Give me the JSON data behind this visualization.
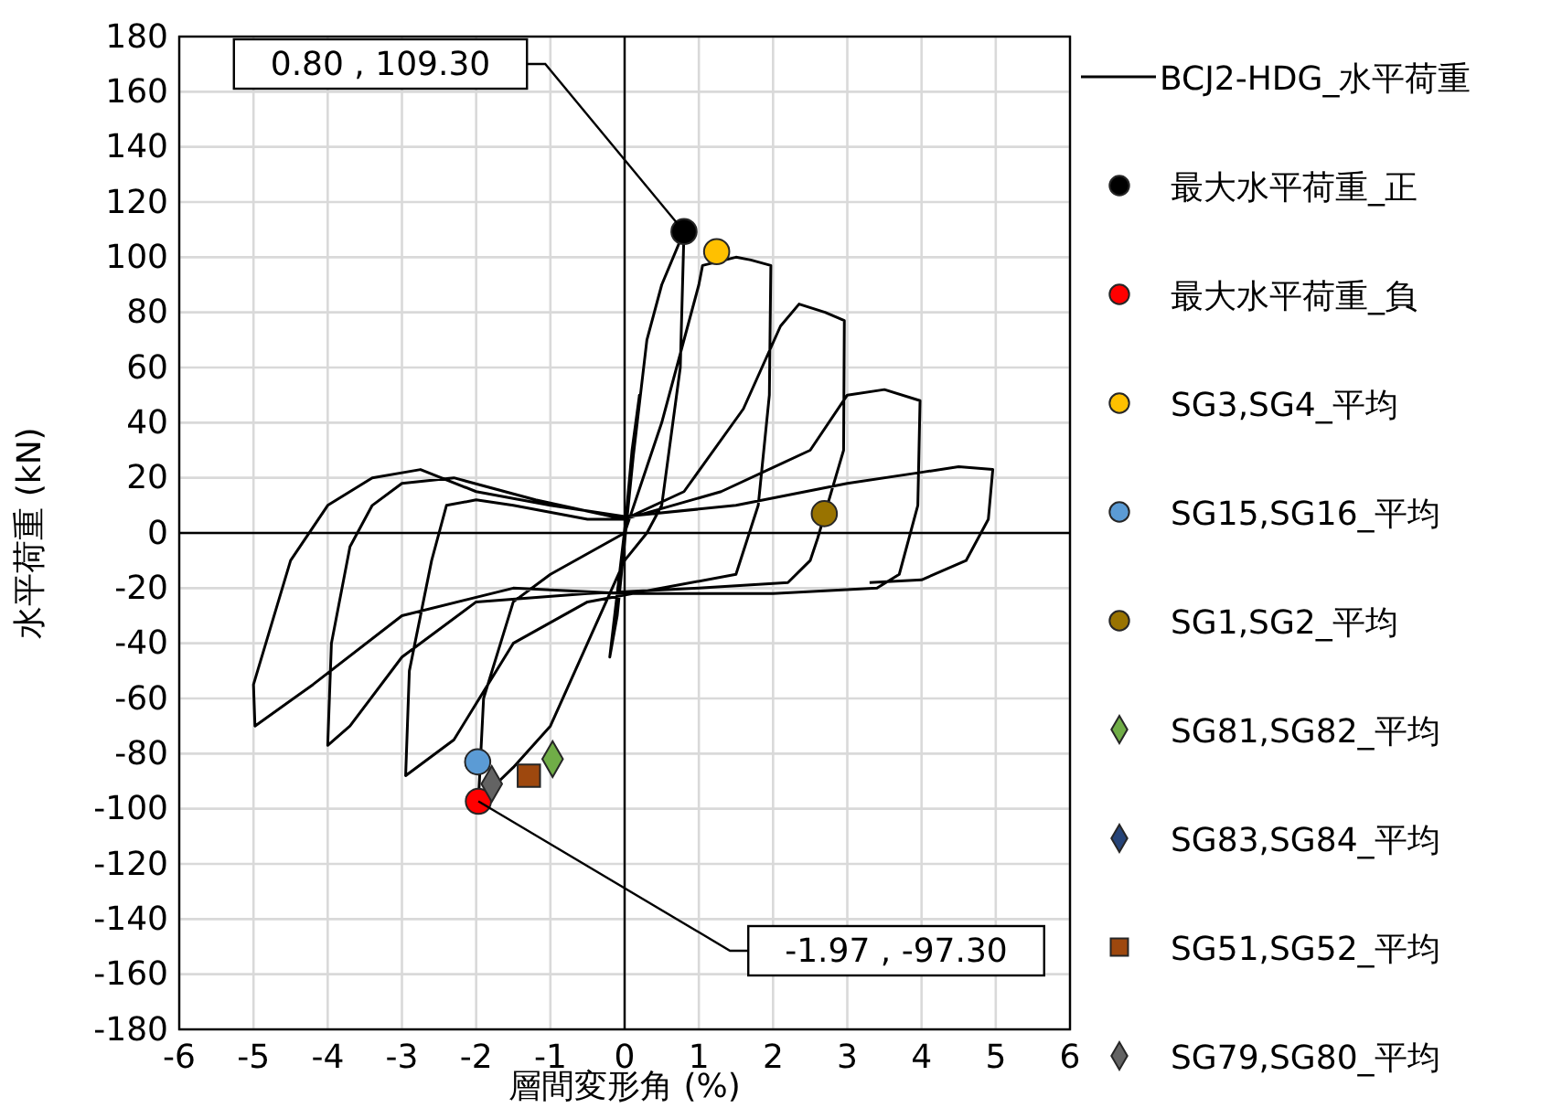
{
  "chart_data": {
    "type": "line",
    "xlabel": "層間変形角 (%)",
    "ylabel": "水平荷重 (kN)",
    "xlim": [
      -6,
      6
    ],
    "xticks": [
      -6,
      -5,
      -4,
      -3,
      -2,
      -1,
      0,
      1,
      2,
      3,
      4,
      5,
      6
    ],
    "ylim": [
      -180,
      180
    ],
    "yticks": [
      -180,
      -160,
      -140,
      -120,
      -100,
      -80,
      -60,
      -40,
      -20,
      0,
      20,
      40,
      60,
      80,
      100,
      120,
      140,
      160,
      180
    ],
    "grid": true,
    "legend": "right",
    "annotations": [
      {
        "text": "0.80 , 109.30",
        "x": 0.8,
        "y": 109.3
      },
      {
        "text": "-1.97 , -97.30",
        "x": -1.97,
        "y": -97.3
      }
    ],
    "series": [
      {
        "name": "BCJ2-HDG_水平荷重",
        "type": "line",
        "marker": "none",
        "color": "#000000",
        "x": [
          0,
          0.1,
          0.2,
          -0.1,
          -0.2,
          0.3,
          0.5,
          0.8,
          0.75,
          0.5,
          0.3,
          0,
          -0.5,
          -1,
          -1.5,
          -1.97,
          -1.9,
          -1.5,
          -1,
          0,
          0.5,
          1,
          1.05,
          1.5,
          1.7,
          1.97,
          1.95,
          1.8,
          1.5,
          0.5,
          -0.5,
          -1.5,
          -2.3,
          -2.95,
          -2.9,
          -2.6,
          -2.4,
          -2,
          -1.5,
          -0.5,
          0,
          0.8,
          1.6,
          2.1,
          2.35,
          2.7,
          2.96,
          2.95,
          2.6,
          2.5,
          2.2,
          1,
          -0.5,
          -2,
          -3,
          -3.7,
          -4,
          -3.95,
          -3.7,
          -3.4,
          -3,
          -2.3,
          -1.2,
          0,
          1.3,
          2.5,
          3,
          3.5,
          3.98,
          3.95,
          3.7,
          3.4,
          2,
          0,
          -1.5,
          -3,
          -4.2,
          -4.98,
          -5,
          -4.5,
          -4,
          -3.4,
          -2.75,
          -2,
          -1,
          0,
          1.5,
          3,
          4,
          4.5,
          4.96,
          4.9,
          4.6,
          4,
          3.3
        ],
        "values": [
          0,
          30,
          50,
          -30,
          -45,
          70,
          90,
          109.3,
          60,
          10,
          0,
          -10,
          -40,
          -70,
          -85,
          -97.3,
          -60,
          -25,
          -15,
          0,
          40,
          90,
          97,
          100,
          99,
          97,
          50,
          10,
          -15,
          -20,
          -25,
          -40,
          -75,
          -88,
          -50,
          -10,
          10,
          12,
          10,
          5,
          5,
          15,
          45,
          75,
          83,
          80,
          77,
          30,
          -2,
          -10,
          -18,
          -20,
          -22,
          -25,
          -45,
          -70,
          -77,
          -40,
          -5,
          10,
          18,
          20,
          12,
          5,
          15,
          30,
          50,
          52,
          48,
          10,
          -15,
          -20,
          -22,
          -22,
          -20,
          -30,
          -55,
          -70,
          -55,
          -10,
          10,
          20,
          23,
          15,
          10,
          6,
          10,
          18,
          22,
          24,
          23,
          5,
          -10,
          -17,
          -18
        ]
      },
      {
        "name": "最大水平荷重_正",
        "type": "scatter",
        "marker": "circle",
        "color": "#000000",
        "x": [
          0.8
        ],
        "values": [
          109.3
        ]
      },
      {
        "name": "最大水平荷重_負",
        "type": "scatter",
        "marker": "circle",
        "color": "#ff0000",
        "x": [
          -1.97
        ],
        "values": [
          -97.3
        ]
      },
      {
        "name": "SG3,SG4_平均",
        "type": "scatter",
        "marker": "circle",
        "color": "#ffc000",
        "x": [
          1.24
        ],
        "values": [
          102
        ]
      },
      {
        "name": "SG15,SG16_平均",
        "type": "scatter",
        "marker": "circle",
        "color": "#5b9bd5",
        "x": [
          -1.98
        ],
        "values": [
          -83
        ]
      },
      {
        "name": "SG1,SG2_平均",
        "type": "scatter",
        "marker": "circle",
        "color": "#997300",
        "x": [
          2.69
        ],
        "values": [
          7
        ]
      },
      {
        "name": "SG81,SG82_平均",
        "type": "scatter",
        "marker": "diamond",
        "color": "#70ad47",
        "x": [
          -0.97
        ],
        "values": [
          -82
        ]
      },
      {
        "name": "SG83,SG84_平均",
        "type": "scatter",
        "marker": "diamond",
        "color": "#264478"
      },
      {
        "name": "SG51,SG52_平均",
        "type": "scatter",
        "marker": "square",
        "color": "#9e480e",
        "x": [
          -1.29
        ],
        "values": [
          -88
        ]
      },
      {
        "name": "SG79,SG80_平均",
        "type": "scatter",
        "marker": "diamond",
        "color": "#636363",
        "x": [
          -1.79
        ],
        "values": [
          -91
        ]
      }
    ]
  }
}
